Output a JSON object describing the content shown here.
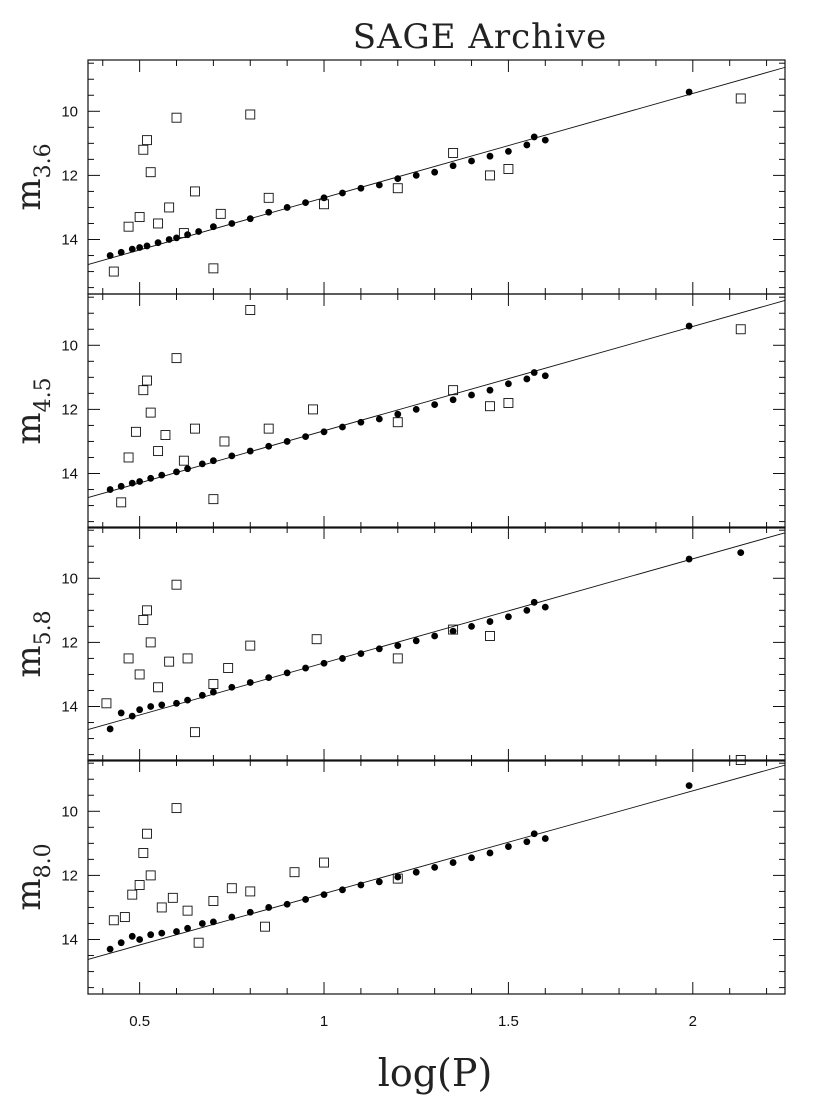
{
  "figure": {
    "title": "SAGE Archive",
    "xlabel": "log(P)"
  },
  "chart_data": [
    {
      "type": "scatter",
      "ylabel": "m",
      "ylabel_sub": "3.6",
      "xlim": [
        0.36,
        2.25
      ],
      "ylim": [
        15.7,
        8.4
      ],
      "x_ticks": [
        0.5,
        1,
        1.5,
        2
      ],
      "y_ticks": [
        10,
        12,
        14
      ],
      "fit_line": {
        "x": [
          0.36,
          2.25
        ],
        "y": [
          14.78,
          8.63
        ]
      },
      "series": [
        {
          "marker": "filled-circle",
          "points": [
            [
              0.42,
              14.5
            ],
            [
              0.45,
              14.4
            ],
            [
              0.48,
              14.3
            ],
            [
              0.5,
              14.25
            ],
            [
              0.52,
              14.2
            ],
            [
              0.55,
              14.1
            ],
            [
              0.58,
              14.0
            ],
            [
              0.6,
              13.95
            ],
            [
              0.63,
              13.85
            ],
            [
              0.66,
              13.75
            ],
            [
              0.7,
              13.6
            ],
            [
              0.75,
              13.5
            ],
            [
              0.8,
              13.35
            ],
            [
              0.85,
              13.15
            ],
            [
              0.9,
              13.0
            ],
            [
              0.95,
              12.85
            ],
            [
              1.0,
              12.7
            ],
            [
              1.05,
              12.55
            ],
            [
              1.1,
              12.4
            ],
            [
              1.15,
              12.3
            ],
            [
              1.2,
              12.1
            ],
            [
              1.25,
              12.0
            ],
            [
              1.3,
              11.9
            ],
            [
              1.35,
              11.7
            ],
            [
              1.4,
              11.55
            ],
            [
              1.45,
              11.4
            ],
            [
              1.5,
              11.25
            ],
            [
              1.55,
              11.05
            ],
            [
              1.57,
              10.8
            ],
            [
              1.6,
              10.9
            ],
            [
              1.99,
              9.4
            ]
          ]
        },
        {
          "marker": "open-square",
          "points": [
            [
              0.43,
              15.0
            ],
            [
              0.47,
              13.6
            ],
            [
              0.5,
              13.3
            ],
            [
              0.51,
              11.2
            ],
            [
              0.52,
              10.9
            ],
            [
              0.53,
              11.9
            ],
            [
              0.55,
              13.5
            ],
            [
              0.58,
              13.0
            ],
            [
              0.6,
              10.2
            ],
            [
              0.62,
              13.8
            ],
            [
              0.65,
              12.5
            ],
            [
              0.7,
              14.9
            ],
            [
              0.72,
              13.2
            ],
            [
              0.8,
              10.1
            ],
            [
              0.85,
              12.7
            ],
            [
              1.0,
              12.9
            ],
            [
              1.2,
              12.4
            ],
            [
              1.35,
              11.3
            ],
            [
              1.45,
              12.0
            ],
            [
              1.5,
              11.8
            ],
            [
              2.13,
              9.6
            ]
          ]
        }
      ]
    },
    {
      "type": "scatter",
      "ylabel": "m",
      "ylabel_sub": "4.5",
      "xlim": [
        0.36,
        2.25
      ],
      "ylim": [
        15.7,
        8.4
      ],
      "x_ticks": [
        0.5,
        1,
        1.5,
        2
      ],
      "y_ticks": [
        10,
        12,
        14
      ],
      "fit_line": {
        "x": [
          0.36,
          2.25
        ],
        "y": [
          14.75,
          8.6
        ]
      },
      "series": [
        {
          "marker": "filled-circle",
          "points": [
            [
              0.42,
              14.5
            ],
            [
              0.45,
              14.4
            ],
            [
              0.48,
              14.3
            ],
            [
              0.5,
              14.25
            ],
            [
              0.53,
              14.15
            ],
            [
              0.56,
              14.05
            ],
            [
              0.6,
              13.95
            ],
            [
              0.63,
              13.85
            ],
            [
              0.67,
              13.7
            ],
            [
              0.7,
              13.6
            ],
            [
              0.75,
              13.45
            ],
            [
              0.8,
              13.3
            ],
            [
              0.85,
              13.15
            ],
            [
              0.9,
              13.0
            ],
            [
              0.95,
              12.85
            ],
            [
              1.0,
              12.7
            ],
            [
              1.05,
              12.55
            ],
            [
              1.1,
              12.4
            ],
            [
              1.15,
              12.3
            ],
            [
              1.2,
              12.15
            ],
            [
              1.25,
              12.0
            ],
            [
              1.3,
              11.85
            ],
            [
              1.35,
              11.7
            ],
            [
              1.4,
              11.55
            ],
            [
              1.45,
              11.4
            ],
            [
              1.5,
              11.2
            ],
            [
              1.55,
              11.05
            ],
            [
              1.57,
              10.85
            ],
            [
              1.6,
              10.95
            ],
            [
              1.99,
              9.4
            ]
          ]
        },
        {
          "marker": "open-square",
          "points": [
            [
              0.45,
              14.9
            ],
            [
              0.47,
              13.5
            ],
            [
              0.49,
              12.7
            ],
            [
              0.51,
              11.4
            ],
            [
              0.52,
              11.1
            ],
            [
              0.53,
              12.1
            ],
            [
              0.55,
              13.3
            ],
            [
              0.57,
              12.8
            ],
            [
              0.6,
              10.4
            ],
            [
              0.62,
              13.6
            ],
            [
              0.65,
              12.6
            ],
            [
              0.7,
              14.8
            ],
            [
              0.73,
              13.0
            ],
            [
              0.8,
              8.9
            ],
            [
              0.85,
              12.6
            ],
            [
              0.97,
              12.0
            ],
            [
              1.2,
              12.4
            ],
            [
              1.35,
              11.4
            ],
            [
              1.45,
              11.9
            ],
            [
              1.5,
              11.8
            ],
            [
              2.13,
              9.5
            ]
          ]
        }
      ]
    },
    {
      "type": "scatter",
      "ylabel": "m",
      "ylabel_sub": "5.8",
      "xlim": [
        0.36,
        2.25
      ],
      "ylim": [
        15.7,
        8.4
      ],
      "x_ticks": [
        0.5,
        1,
        1.5,
        2
      ],
      "y_ticks": [
        10,
        12,
        14
      ],
      "fit_line": {
        "x": [
          0.36,
          2.25
        ],
        "y": [
          14.72,
          8.58
        ]
      },
      "series": [
        {
          "marker": "filled-circle",
          "points": [
            [
              0.42,
              14.7
            ],
            [
              0.45,
              14.2
            ],
            [
              0.48,
              14.3
            ],
            [
              0.5,
              14.1
            ],
            [
              0.53,
              14.0
            ],
            [
              0.56,
              13.95
            ],
            [
              0.6,
              13.9
            ],
            [
              0.63,
              13.8
            ],
            [
              0.67,
              13.65
            ],
            [
              0.7,
              13.55
            ],
            [
              0.75,
              13.4
            ],
            [
              0.8,
              13.25
            ],
            [
              0.85,
              13.1
            ],
            [
              0.9,
              12.95
            ],
            [
              0.95,
              12.8
            ],
            [
              1.0,
              12.65
            ],
            [
              1.05,
              12.5
            ],
            [
              1.1,
              12.35
            ],
            [
              1.15,
              12.2
            ],
            [
              1.2,
              12.1
            ],
            [
              1.25,
              11.95
            ],
            [
              1.3,
              11.8
            ],
            [
              1.35,
              11.65
            ],
            [
              1.4,
              11.5
            ],
            [
              1.45,
              11.35
            ],
            [
              1.5,
              11.2
            ],
            [
              1.55,
              11.0
            ],
            [
              1.57,
              10.75
            ],
            [
              1.6,
              10.9
            ],
            [
              1.99,
              9.4
            ],
            [
              2.13,
              9.2
            ]
          ]
        },
        {
          "marker": "open-square",
          "points": [
            [
              0.41,
              13.9
            ],
            [
              0.47,
              12.5
            ],
            [
              0.5,
              13.0
            ],
            [
              0.51,
              11.3
            ],
            [
              0.52,
              11.0
            ],
            [
              0.53,
              12.0
            ],
            [
              0.55,
              13.4
            ],
            [
              0.58,
              12.6
            ],
            [
              0.6,
              10.2
            ],
            [
              0.63,
              12.5
            ],
            [
              0.65,
              14.8
            ],
            [
              0.7,
              13.3
            ],
            [
              0.74,
              12.8
            ],
            [
              0.8,
              12.1
            ],
            [
              0.98,
              11.9
            ],
            [
              1.2,
              12.5
            ],
            [
              1.35,
              11.6
            ],
            [
              1.45,
              11.8
            ]
          ]
        }
      ]
    },
    {
      "type": "scatter",
      "ylabel": "m",
      "ylabel_sub": "8.0",
      "xlim": [
        0.36,
        2.25
      ],
      "ylim": [
        15.7,
        8.4
      ],
      "x_ticks": [
        0.5,
        1,
        1.5,
        2
      ],
      "y_ticks": [
        10,
        12,
        14
      ],
      "fit_line": {
        "x": [
          0.36,
          2.25
        ],
        "y": [
          14.62,
          8.56
        ]
      },
      "series": [
        {
          "marker": "filled-circle",
          "points": [
            [
              0.42,
              14.3
            ],
            [
              0.45,
              14.1
            ],
            [
              0.48,
              13.9
            ],
            [
              0.5,
              14.0
            ],
            [
              0.53,
              13.85
            ],
            [
              0.56,
              13.8
            ],
            [
              0.6,
              13.75
            ],
            [
              0.63,
              13.65
            ],
            [
              0.67,
              13.5
            ],
            [
              0.7,
              13.45
            ],
            [
              0.75,
              13.3
            ],
            [
              0.8,
              13.15
            ],
            [
              0.85,
              13.0
            ],
            [
              0.9,
              12.9
            ],
            [
              0.95,
              12.75
            ],
            [
              1.0,
              12.6
            ],
            [
              1.05,
              12.45
            ],
            [
              1.1,
              12.3
            ],
            [
              1.15,
              12.2
            ],
            [
              1.2,
              12.05
            ],
            [
              1.25,
              11.9
            ],
            [
              1.3,
              11.75
            ],
            [
              1.35,
              11.6
            ],
            [
              1.4,
              11.45
            ],
            [
              1.45,
              11.3
            ],
            [
              1.5,
              11.1
            ],
            [
              1.55,
              10.95
            ],
            [
              1.57,
              10.7
            ],
            [
              1.6,
              10.85
            ],
            [
              1.99,
              9.2
            ]
          ]
        },
        {
          "marker": "open-square",
          "points": [
            [
              0.43,
              13.4
            ],
            [
              0.46,
              13.3
            ],
            [
              0.48,
              12.6
            ],
            [
              0.5,
              12.3
            ],
            [
              0.51,
              11.3
            ],
            [
              0.52,
              10.7
            ],
            [
              0.53,
              12.0
            ],
            [
              0.56,
              13.0
            ],
            [
              0.59,
              12.7
            ],
            [
              0.6,
              9.9
            ],
            [
              0.63,
              13.1
            ],
            [
              0.66,
              14.1
            ],
            [
              0.7,
              12.8
            ],
            [
              0.75,
              12.4
            ],
            [
              0.8,
              12.5
            ],
            [
              0.84,
              13.6
            ],
            [
              0.92,
              11.9
            ],
            [
              1.0,
              11.6
            ],
            [
              1.2,
              12.1
            ],
            [
              2.13,
              8.4
            ]
          ]
        }
      ]
    }
  ]
}
